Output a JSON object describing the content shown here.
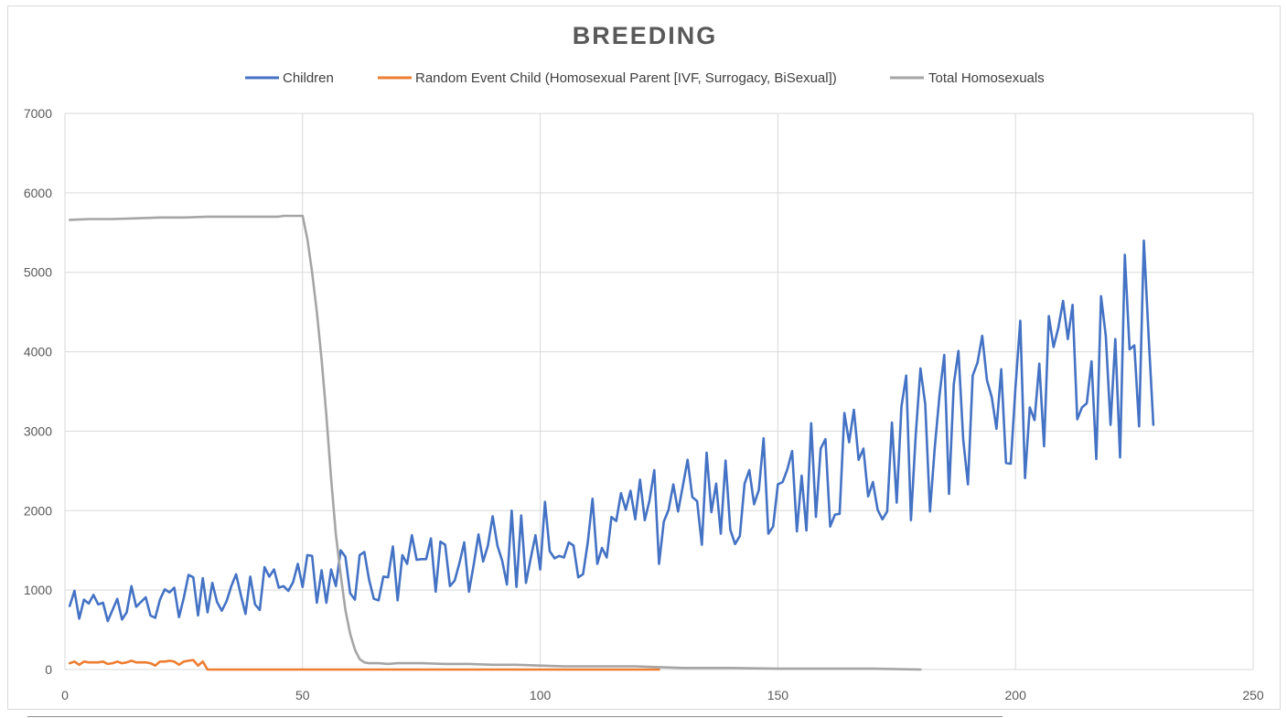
{
  "chart_data": {
    "type": "line",
    "title": "BREEDING",
    "xlabel": "",
    "ylabel": "",
    "xlim": [
      0,
      250
    ],
    "ylim": [
      0,
      7000
    ],
    "x_ticks": [
      0,
      50,
      100,
      150,
      200,
      250
    ],
    "y_ticks": [
      0,
      1000,
      2000,
      3000,
      4000,
      5000,
      6000,
      7000
    ],
    "grid": true,
    "legend_position": "top",
    "series": [
      {
        "name": "Children",
        "color": "#4472c4",
        "x_start": 1,
        "values": [
          800,
          990,
          640,
          880,
          830,
          940,
          820,
          840,
          610,
          750,
          890,
          630,
          720,
          1050,
          790,
          850,
          910,
          680,
          650,
          880,
          1010,
          970,
          1030,
          660,
          900,
          1190,
          1160,
          680,
          1150,
          720,
          1090,
          850,
          740,
          860,
          1050,
          1200,
          940,
          700,
          1170,
          820,
          750,
          1290,
          1170,
          1260,
          1030,
          1050,
          990,
          1100,
          1330,
          1040,
          1440,
          1430,
          840,
          1250,
          840,
          1260,
          1050,
          1500,
          1420,
          960,
          880,
          1440,
          1480,
          1130,
          890,
          870,
          1170,
          1160,
          1550,
          870,
          1440,
          1330,
          1690,
          1380,
          1390,
          1390,
          1650,
          980,
          1610,
          1570,
          1050,
          1120,
          1340,
          1600,
          980,
          1320,
          1700,
          1360,
          1560,
          1930,
          1560,
          1370,
          1070,
          2000,
          1040,
          1940,
          1090,
          1400,
          1690,
          1260,
          2110,
          1490,
          1400,
          1430,
          1410,
          1600,
          1560,
          1160,
          1200,
          1600,
          2150,
          1330,
          1530,
          1410,
          1920,
          1870,
          2220,
          2010,
          2250,
          1890,
          2390,
          1880,
          2130,
          2510,
          1330,
          1860,
          2010,
          2330,
          1990,
          2310,
          2640,
          2170,
          2120,
          1570,
          2730,
          1980,
          2340,
          1710,
          2630,
          1760,
          1580,
          1680,
          2340,
          2510,
          2080,
          2260,
          2910,
          1710,
          1800,
          2330,
          2360,
          2520,
          2750,
          1740,
          2440,
          1750,
          3100,
          1920,
          2780,
          2900,
          1800,
          1950,
          1960,
          3230,
          2860,
          3270,
          2640,
          2780,
          2180,
          2360,
          2010,
          1890,
          1990,
          3110,
          2100,
          3310,
          3700,
          1880,
          2950,
          3790,
          3340,
          1990,
          2790,
          3450,
          3960,
          2210,
          3590,
          4010,
          2900,
          2330,
          3700,
          3860,
          4200,
          3640,
          3430,
          3030,
          3780,
          2600,
          2590,
          3560,
          4390,
          2410,
          3300,
          3140,
          3850,
          2810,
          4450,
          4060,
          4300,
          4640,
          4160,
          4590,
          3150,
          3300,
          3350,
          3880,
          2650,
          4700,
          4200,
          3080,
          4160,
          2670,
          5220,
          4030,
          4080,
          3060,
          5400,
          4200,
          3080
        ]
      },
      {
        "name": "Random Event Child (Homosexual Parent [IVF, Surrogacy, BiSexual])",
        "color": "#ed7d31",
        "points": [
          [
            1,
            80
          ],
          [
            2,
            100
          ],
          [
            3,
            60
          ],
          [
            4,
            100
          ],
          [
            5,
            90
          ],
          [
            6,
            90
          ],
          [
            7,
            90
          ],
          [
            8,
            100
          ],
          [
            9,
            70
          ],
          [
            10,
            80
          ],
          [
            11,
            100
          ],
          [
            12,
            80
          ],
          [
            13,
            90
          ],
          [
            14,
            110
          ],
          [
            15,
            90
          ],
          [
            16,
            90
          ],
          [
            17,
            90
          ],
          [
            18,
            80
          ],
          [
            19,
            50
          ],
          [
            20,
            100
          ],
          [
            21,
            100
          ],
          [
            22,
            110
          ],
          [
            23,
            100
          ],
          [
            24,
            60
          ],
          [
            25,
            100
          ],
          [
            26,
            110
          ],
          [
            27,
            120
          ],
          [
            28,
            50
          ],
          [
            29,
            100
          ],
          [
            30,
            0
          ],
          [
            60,
            0
          ],
          [
            90,
            0
          ],
          [
            110,
            0
          ],
          [
            125,
            0
          ]
        ]
      },
      {
        "name": "Total Homosexuals",
        "color": "#a5a5a5",
        "points": [
          [
            1,
            5660
          ],
          [
            5,
            5670
          ],
          [
            10,
            5670
          ],
          [
            15,
            5680
          ],
          [
            20,
            5690
          ],
          [
            25,
            5690
          ],
          [
            30,
            5700
          ],
          [
            40,
            5700
          ],
          [
            45,
            5700
          ],
          [
            46,
            5710
          ],
          [
            50,
            5710
          ],
          [
            51,
            5420
          ],
          [
            52,
            5000
          ],
          [
            53,
            4500
          ],
          [
            54,
            3900
          ],
          [
            55,
            3200
          ],
          [
            56,
            2400
          ],
          [
            57,
            1700
          ],
          [
            58,
            1200
          ],
          [
            59,
            750
          ],
          [
            60,
            450
          ],
          [
            61,
            250
          ],
          [
            62,
            130
          ],
          [
            63,
            90
          ],
          [
            64,
            80
          ],
          [
            65,
            80
          ],
          [
            66,
            80
          ],
          [
            68,
            70
          ],
          [
            70,
            80
          ],
          [
            75,
            80
          ],
          [
            80,
            70
          ],
          [
            85,
            70
          ],
          [
            90,
            60
          ],
          [
            95,
            60
          ],
          [
            100,
            50
          ],
          [
            105,
            40
          ],
          [
            110,
            40
          ],
          [
            115,
            40
          ],
          [
            120,
            40
          ],
          [
            125,
            30
          ],
          [
            130,
            20
          ],
          [
            140,
            20
          ],
          [
            150,
            10
          ],
          [
            160,
            10
          ],
          [
            170,
            10
          ],
          [
            180,
            0
          ]
        ]
      }
    ]
  }
}
